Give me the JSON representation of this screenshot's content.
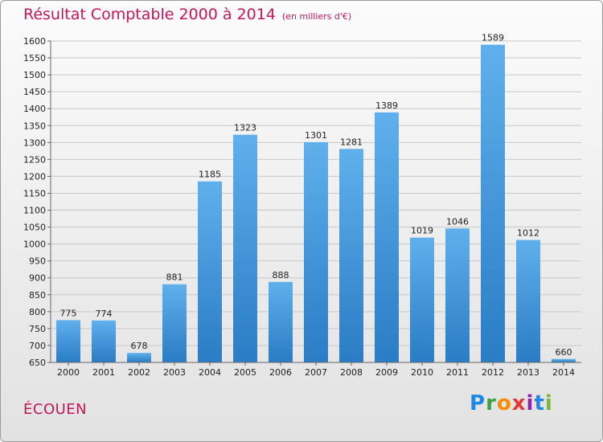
{
  "header": {
    "title": "Résultat Comptable 2000 à 2014",
    "subtitle": "(en milliers d'€)"
  },
  "footer": {
    "place": "ÉCOUEN",
    "logo_letters": [
      {
        "char": "P",
        "color": "#1e88e5"
      },
      {
        "char": "r",
        "color": "#43a047"
      },
      {
        "char": "o",
        "color": "#fb8c00"
      },
      {
        "char": "x",
        "color": "#e53935"
      },
      {
        "char": "i",
        "color": "#8e24aa"
      },
      {
        "char": "t",
        "color": "#1e88e5"
      },
      {
        "char": "i",
        "color": "#7cb342"
      }
    ]
  },
  "colors": {
    "bar_top": "#5fb0ec",
    "bar_bottom": "#2a7cc4",
    "grid": "#c8c8c8",
    "title": "#c2185b"
  },
  "chart_data": {
    "type": "bar",
    "title": "Résultat Comptable 2000 à 2014",
    "subtitle": "(en milliers d'€)",
    "xlabel": "",
    "ylabel": "",
    "categories": [
      "2000",
      "2001",
      "2002",
      "2003",
      "2004",
      "2005",
      "2006",
      "2007",
      "2008",
      "2009",
      "2010",
      "2011",
      "2012",
      "2013",
      "2014"
    ],
    "values": [
      775,
      774,
      678,
      881,
      1185,
      1323,
      888,
      1301,
      1281,
      1389,
      1019,
      1046,
      1589,
      1012,
      660
    ],
    "ylim": [
      650,
      1600
    ],
    "yticks": [
      650,
      700,
      750,
      800,
      850,
      900,
      950,
      1000,
      1050,
      1100,
      1150,
      1200,
      1250,
      1300,
      1350,
      1400,
      1450,
      1500,
      1550,
      1600
    ],
    "grid": true,
    "legend": "none"
  }
}
